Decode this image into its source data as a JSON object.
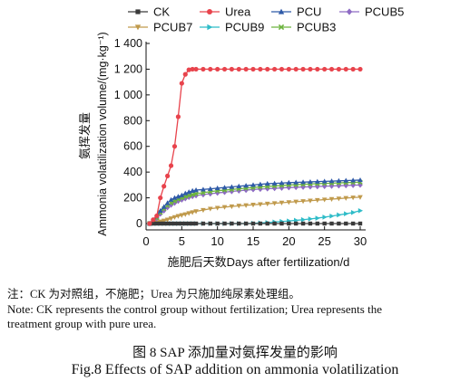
{
  "chart_data": {
    "type": "line",
    "xlabel": "施肥后天数Days after fertilization/d",
    "ylabel_cn": "氨挥发量",
    "ylabel_en": "Ammonia volatilization volume/(mg·kg⁻¹)",
    "xlim": [
      0,
      30
    ],
    "ylim": [
      0,
      1400
    ],
    "xticks": [
      0,
      5,
      10,
      15,
      20,
      25,
      30
    ],
    "yticks": [
      0,
      200,
      400,
      600,
      800,
      1000,
      1200,
      1400
    ],
    "ytick_labels": [
      "0",
      "200",
      "400",
      "600",
      "800",
      "1 000",
      "1 200",
      "1 400"
    ],
    "legend_placement": "top",
    "x": [
      0.5,
      1,
      1.5,
      2,
      2.5,
      3,
      3.5,
      4,
      4.5,
      5,
      5.5,
      6,
      6.5,
      7,
      8,
      9,
      10,
      11,
      12,
      13,
      14,
      15,
      16,
      17,
      18,
      19,
      20,
      21,
      22,
      23,
      24,
      25,
      26,
      27,
      28,
      29,
      30
    ],
    "series": [
      {
        "name": "CK",
        "color": "#3a3a3a",
        "marker": "square",
        "values": [
          0,
          0,
          0,
          0,
          0,
          0,
          0,
          0,
          0,
          0,
          0,
          0,
          0,
          0,
          0,
          0,
          0,
          0,
          0,
          0,
          0,
          0,
          0,
          0,
          0,
          0,
          0,
          0,
          0,
          0,
          0,
          0,
          0,
          0,
          0,
          0,
          0
        ]
      },
      {
        "name": "Urea",
        "color": "#e8434c",
        "marker": "circle",
        "values": [
          0,
          30,
          60,
          200,
          290,
          370,
          450,
          600,
          830,
          1090,
          1160,
          1195,
          1200,
          1200,
          1200,
          1200,
          1200,
          1200,
          1200,
          1200,
          1200,
          1200,
          1200,
          1200,
          1200,
          1200,
          1200,
          1200,
          1200,
          1200,
          1200,
          1200,
          1200,
          1200,
          1200,
          1200,
          1200
        ]
      },
      {
        "name": "PCU",
        "color": "#2f5aa8",
        "marker": "triangle",
        "values": [
          0,
          15,
          60,
          100,
          130,
          160,
          185,
          200,
          210,
          220,
          235,
          245,
          255,
          260,
          265,
          270,
          275,
          280,
          285,
          290,
          295,
          300,
          305,
          310,
          312,
          315,
          318,
          320,
          322,
          324,
          326,
          328,
          330,
          332,
          334,
          336,
          338
        ]
      },
      {
        "name": "PCUB5",
        "color": "#8e6bc4",
        "marker": "diamond",
        "values": [
          0,
          10,
          40,
          75,
          100,
          125,
          145,
          160,
          175,
          185,
          195,
          205,
          212,
          218,
          225,
          232,
          238,
          244,
          250,
          255,
          260,
          265,
          268,
          271,
          274,
          277,
          280,
          282,
          284,
          286,
          288,
          290,
          292,
          294,
          296,
          298,
          300
        ]
      },
      {
        "name": "PCUB7",
        "color": "#c09a4c",
        "marker": "triangle-down",
        "values": [
          0,
          3,
          8,
          15,
          22,
          30,
          40,
          50,
          58,
          65,
          72,
          80,
          87,
          95,
          105,
          115,
          122,
          128,
          133,
          138,
          142,
          146,
          150,
          154,
          158,
          162,
          166,
          170,
          174,
          178,
          182,
          186,
          190,
          194,
          198,
          202,
          205
        ]
      },
      {
        "name": "PCUB9",
        "color": "#2fbcc8",
        "marker": "triangle-right",
        "values": [
          0,
          0,
          0,
          0,
          0,
          0,
          0,
          0,
          0,
          0,
          0,
          0,
          0,
          0,
          0,
          0,
          0,
          0,
          0,
          0,
          0,
          2,
          5,
          8,
          12,
          16,
          20,
          25,
          30,
          36,
          42,
          50,
          58,
          67,
          76,
          86,
          100
        ]
      },
      {
        "name": "PCUB3",
        "color": "#6cb33e",
        "marker": "x",
        "values": [
          0,
          10,
          45,
          85,
          115,
          140,
          160,
          175,
          190,
          200,
          210,
          218,
          225,
          232,
          240,
          248,
          255,
          260,
          265,
          270,
          275,
          280,
          285,
          288,
          292,
          296,
          300,
          302,
          305,
          308,
          310,
          312,
          314,
          316,
          318,
          320,
          322
        ]
      }
    ]
  },
  "notes": {
    "line1": "注：CK 为对照组，不施肥；Urea 为只施加纯尿素处理组。",
    "line2": "Note: CK represents the control group without fertilization; Urea represents the",
    "line3": "treatment group with pure urea."
  },
  "caption": {
    "cn": "图 8   SAP 添加量对氨挥发量的影响",
    "en": "Fig.8    Effects of SAP addition on ammonia volatilization"
  }
}
